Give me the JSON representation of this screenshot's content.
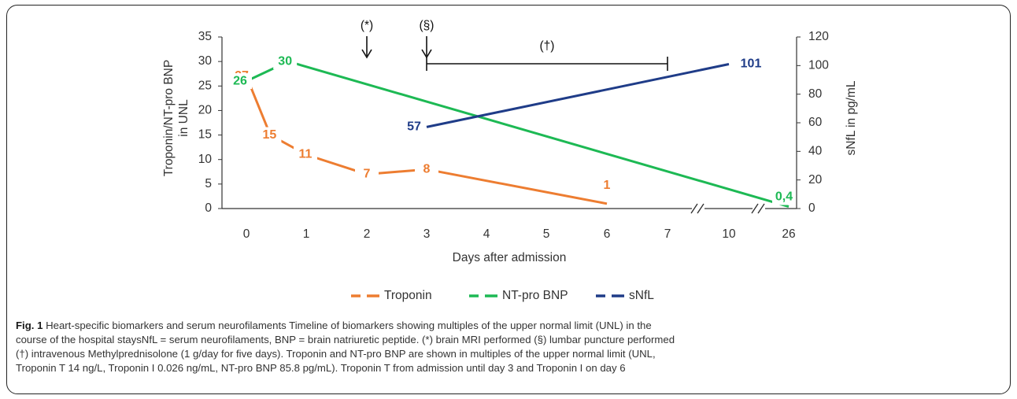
{
  "chart_data": {
    "type": "line",
    "xlabel": "Days after admission",
    "ylabel": "Troponin/NT-pro BNP\nin UNL",
    "y2label": "sNfL in pg/mL",
    "x_ticks": [
      "0",
      "1",
      "2",
      "3",
      "4",
      "5",
      "6",
      "7",
      "10",
      "26"
    ],
    "y_ticks": [
      "0",
      "5",
      "10",
      "15",
      "20",
      "25",
      "30",
      "35"
    ],
    "y2_ticks": [
      "0",
      "20",
      "40",
      "60",
      "80",
      "100",
      "120"
    ],
    "ylim": [
      0,
      35
    ],
    "y2lim": [
      0,
      120
    ],
    "axis_breaks": [
      "between 7 and 10",
      "between 10 and 26"
    ],
    "grid": false,
    "legend_position": "bottom",
    "series": [
      {
        "name": "Troponin",
        "color": "#ED7D31",
        "axis": "left",
        "points": [
          [
            0,
            27
          ],
          [
            0.4,
            15
          ],
          [
            1,
            11
          ],
          [
            2,
            7
          ],
          [
            3,
            8
          ],
          [
            6,
            1
          ]
        ],
        "labels": [
          "27",
          "15",
          "11",
          "7",
          "8",
          "1"
        ]
      },
      {
        "name": "NT-pro BNP",
        "color": "#1DB954",
        "axis": "left",
        "points": [
          [
            0,
            26
          ],
          [
            0.7,
            30
          ],
          [
            26,
            0.4
          ]
        ],
        "labels": [
          "26",
          "30",
          "0,4"
        ]
      },
      {
        "name": "sNfL",
        "color": "#1F3C88",
        "axis": "right",
        "points": [
          [
            3,
            57
          ],
          [
            10,
            101
          ]
        ],
        "labels": [
          "57",
          "101"
        ]
      }
    ],
    "annotations": [
      {
        "symbol": "(*)",
        "day": 2,
        "type": "arrow"
      },
      {
        "symbol": "(§)",
        "day": 3,
        "type": "arrow"
      },
      {
        "symbol": "(†)",
        "from": 3,
        "to": 7,
        "type": "range"
      }
    ]
  },
  "caption": {
    "label": "Fig. 1",
    "lines": [
      " Heart-specific biomarkers and serum neurofilaments Timeline of biomarkers showing multiples of the upper normal limit (UNL) in the",
      "course of the hospital staysNfL = serum neurofilaments, BNP = brain natriuretic peptide. (*) brain MRI performed (§) lumbar puncture performed",
      "(†) intravenous Methylprednisolone (1 g/day for five days). Troponin and NT-pro BNP are shown in multiples of the upper normal limit (UNL,",
      "Troponin T 14 ng/L, Troponin I 0.026 ng/mL, NT-pro BNP 85.8 pg/mL). Troponin T from admission until day 3 and Troponin I on day 6"
    ]
  }
}
